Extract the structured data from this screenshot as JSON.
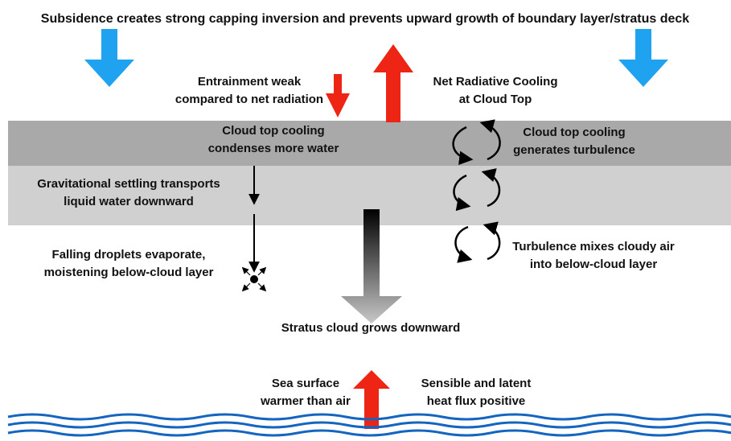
{
  "title": "Subsidence creates strong capping inversion and prevents upward growth of boundary layer/stratus deck",
  "labels": {
    "entrainment": [
      "Entrainment weak",
      "compared to net radiation"
    ],
    "radiative": [
      "Net Radiative Cooling",
      "at Cloud Top"
    ],
    "condenses": [
      "Cloud top cooling",
      "condenses more water"
    ],
    "turbulence": [
      "Cloud top cooling",
      "generates turbulence"
    ],
    "settling": [
      "Gravitational settling transports",
      "liquid water downward"
    ],
    "evaporate": [
      "Falling droplets evaporate,",
      "moistening below-cloud layer"
    ],
    "mixes": [
      "Turbulence mixes cloudy air",
      "into below-cloud layer"
    ],
    "grows": [
      "Stratus cloud grows downward"
    ],
    "sea": [
      "Sea surface",
      "warmer than air"
    ],
    "flux": [
      "Sensible and latent",
      "heat flux positive"
    ]
  }
}
